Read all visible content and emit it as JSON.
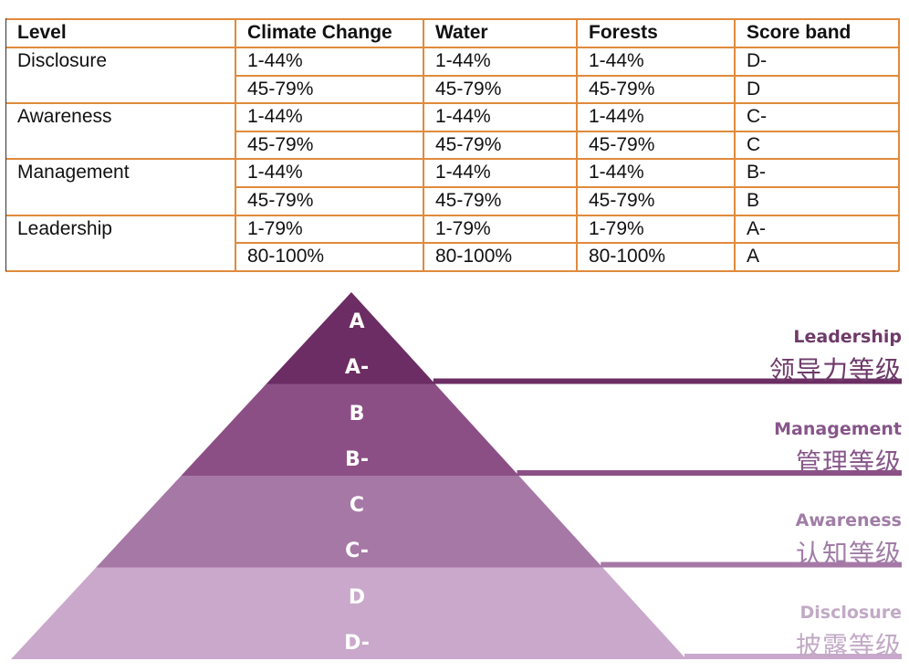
{
  "table": {
    "headers": [
      "Level",
      "Climate Change",
      "Water",
      "Forests",
      "Score band"
    ],
    "groups": [
      {
        "level": "Disclosure",
        "rows": [
          [
            "1-44%",
            "1-44%",
            "1-44%",
            "D-"
          ],
          [
            "45-79%",
            "45-79%",
            "45-79%",
            "D"
          ]
        ]
      },
      {
        "level": "Awareness",
        "rows": [
          [
            "1-44%",
            "1-44%",
            "1-44%",
            "C-"
          ],
          [
            "45-79%",
            "45-79%",
            "45-79%",
            "C"
          ]
        ]
      },
      {
        "level": "Management",
        "rows": [
          [
            "1-44%",
            "1-44%",
            "1-44%",
            "B-"
          ],
          [
            "45-79%",
            "45-79%",
            "45-79%",
            "B"
          ]
        ]
      },
      {
        "level": "Leadership",
        "rows": [
          [
            "1-79%",
            "1-79%",
            "1-79%",
            "A-"
          ],
          [
            "80-100%",
            "80-100%",
            "80-100%",
            "A"
          ]
        ]
      }
    ],
    "border_color": "#e08a3c"
  },
  "pyramid": {
    "tiers": [
      {
        "name_en": "Leadership",
        "name_cn": "领导力等级",
        "grades": [
          "A",
          "A-"
        ],
        "fill": "#6b2d63",
        "label_color": "#6e3a69"
      },
      {
        "name_en": "Management",
        "name_cn": "管理等级",
        "grades": [
          "B",
          "B-"
        ],
        "fill": "#8b4f85",
        "label_color": "#87558a"
      },
      {
        "name_en": "Awareness",
        "name_cn": "认知等级",
        "grades": [
          "C",
          "C-"
        ],
        "fill": "#a678a6",
        "label_color": "#a07da6"
      },
      {
        "name_en": "Disclosure",
        "name_cn": "披露等级",
        "grades": [
          "D",
          "D-"
        ],
        "fill": "#c9a8cb",
        "label_color": "#c2a9c6"
      }
    ]
  }
}
